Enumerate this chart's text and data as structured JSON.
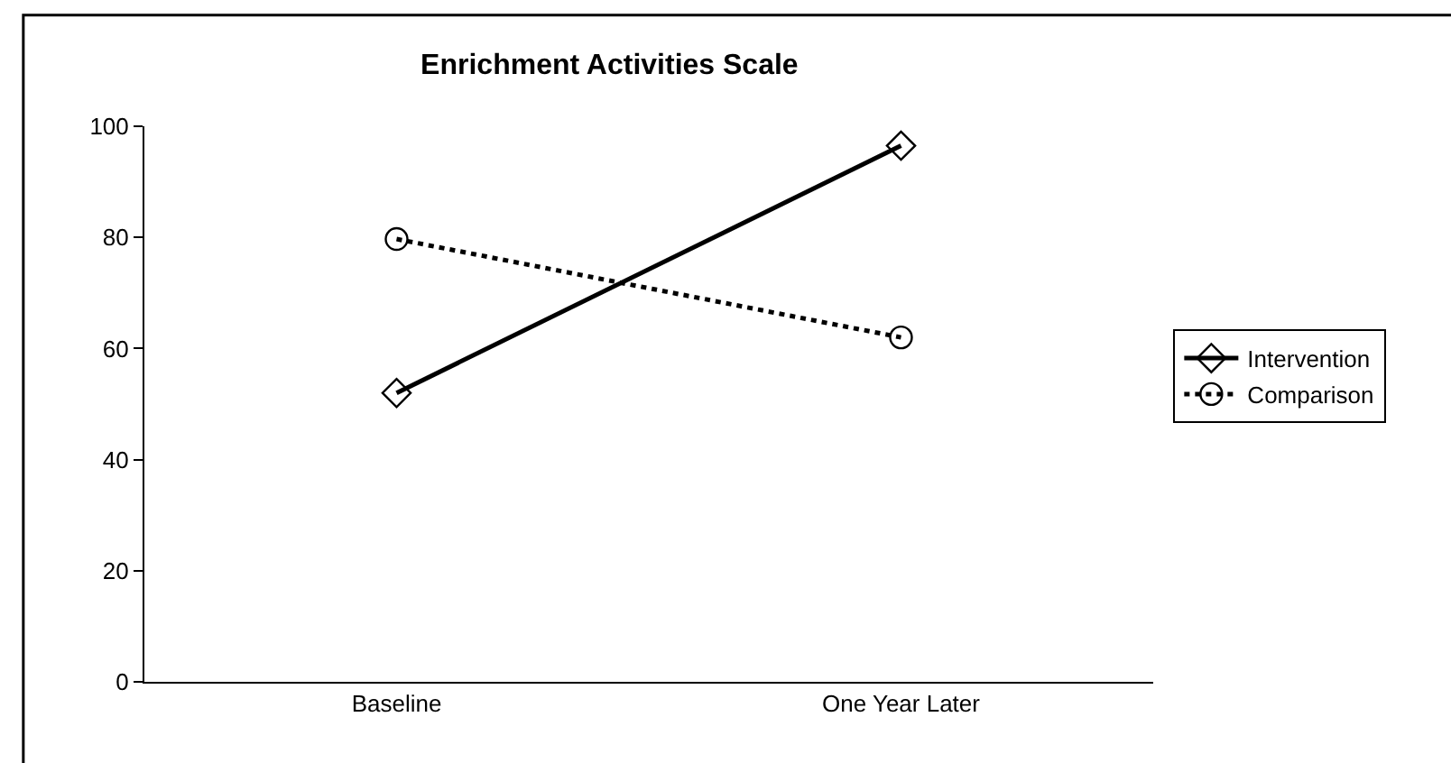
{
  "chart_data": {
    "type": "line",
    "title": "Enrichment Activities Scale",
    "categories": [
      "Baseline",
      "One Year Later"
    ],
    "series": [
      {
        "name": "Intervention",
        "color": "#000000",
        "values": [
          52,
          96.5
        ],
        "marker": "diamond",
        "line_style": "solid"
      },
      {
        "name": "Comparison",
        "color": "#000000",
        "values": [
          79.7,
          62
        ],
        "marker": "circle",
        "line_style": "dotted"
      }
    ],
    "ylim": [
      0,
      100
    ],
    "yticks": [
      0,
      20,
      40,
      60,
      80,
      100
    ],
    "grid": false,
    "legend": "right"
  }
}
